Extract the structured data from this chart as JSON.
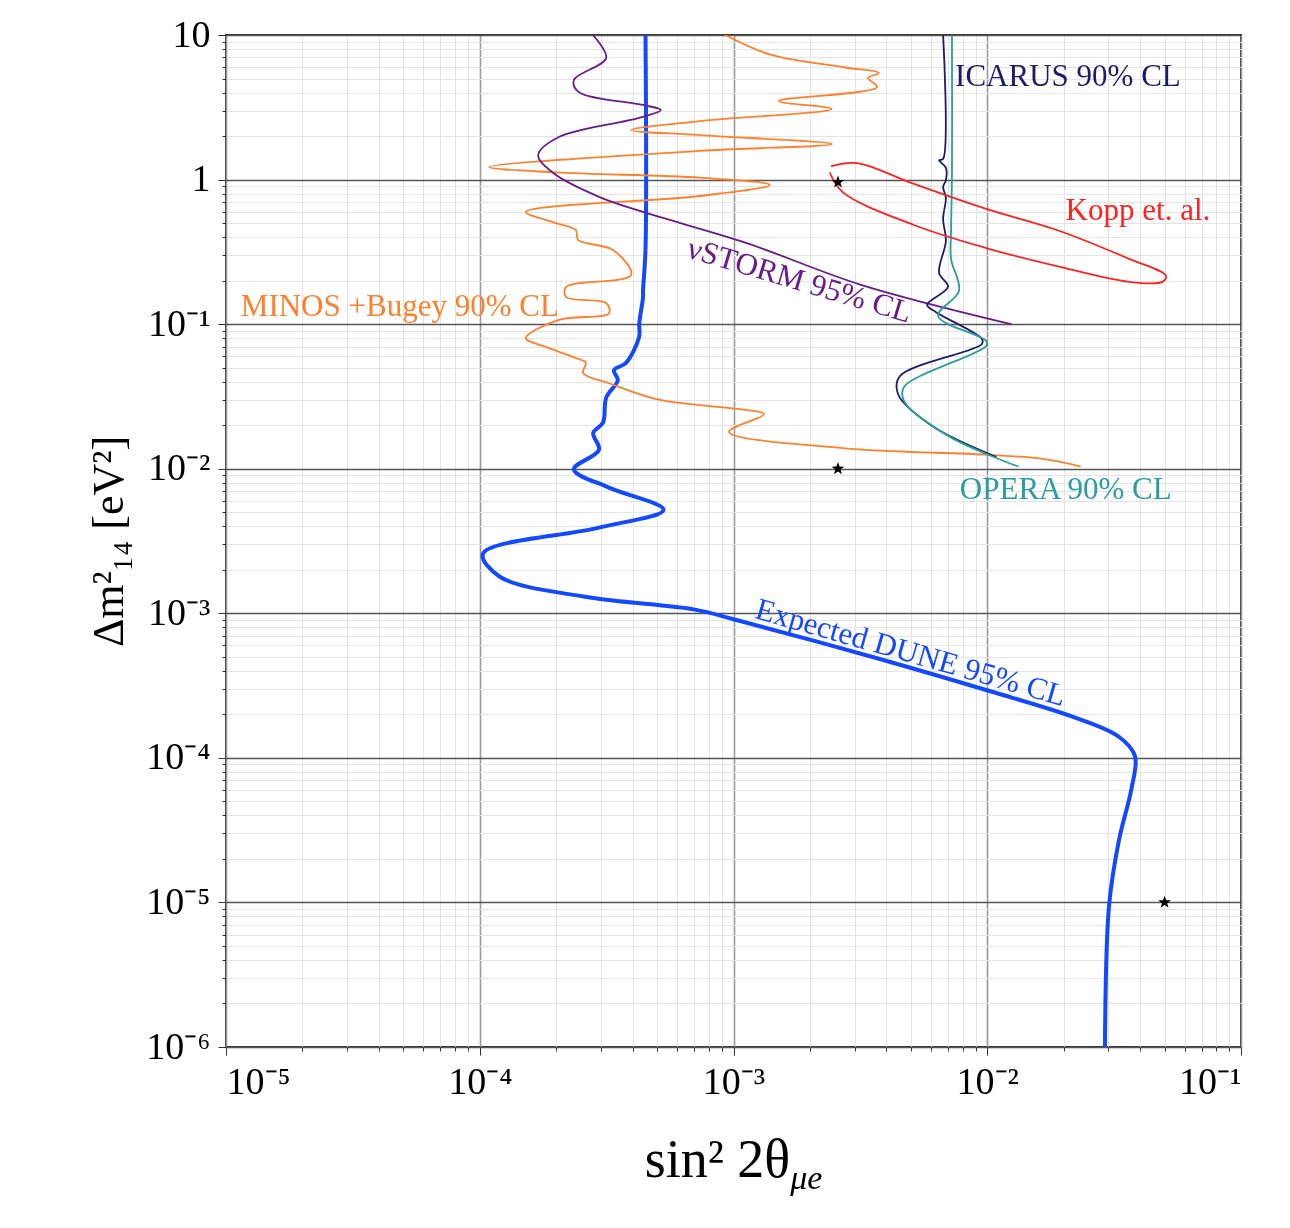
{
  "chart_data": {
    "type": "line",
    "xlabel": "sin² 2θ$_{μe}$",
    "ylabel": "Δm²₁₄ [eV²]",
    "xlim": [
      1e-05,
      0.1
    ],
    "ylim": [
      1e-06,
      10
    ],
    "log": "xy",
    "grid": true,
    "xticks": [
      {
        "value": 1e-05,
        "label": "10⁻⁵"
      },
      {
        "value": 2e-05,
        "label": null
      },
      {
        "value": 3e-05,
        "label": null
      },
      {
        "value": 4e-05,
        "label": null
      },
      {
        "value": 5e-05,
        "label": null
      },
      {
        "value": 6e-05,
        "label": null
      },
      {
        "value": 7e-05,
        "label": null
      },
      {
        "value": 8e-05,
        "label": null
      },
      {
        "value": 9e-05,
        "label": null
      },
      {
        "value": 0.0001,
        "label": "10⁻⁴"
      },
      {
        "value": 0.0002,
        "label": null
      },
      {
        "value": 0.0003,
        "label": null
      },
      {
        "value": 0.0004,
        "label": null
      },
      {
        "value": 0.0005,
        "label": null
      },
      {
        "value": 0.0006,
        "label": null
      },
      {
        "value": 0.0007,
        "label": null
      },
      {
        "value": 0.0008,
        "label": null
      },
      {
        "value": 0.0009,
        "label": null
      },
      {
        "value": 0.001,
        "label": "10⁻³"
      },
      {
        "value": 0.002,
        "label": null
      },
      {
        "value": 0.003,
        "label": null
      },
      {
        "value": 0.004,
        "label": null
      },
      {
        "value": 0.005,
        "label": null
      },
      {
        "value": 0.006,
        "label": null
      },
      {
        "value": 0.007,
        "label": null
      },
      {
        "value": 0.008,
        "label": null
      },
      {
        "value": 0.009,
        "label": null
      },
      {
        "value": 0.01,
        "label": "10⁻²"
      },
      {
        "value": 0.02,
        "label": null
      },
      {
        "value": 0.03,
        "label": null
      },
      {
        "value": 0.04,
        "label": null
      },
      {
        "value": 0.05,
        "label": null
      },
      {
        "value": 0.06,
        "label": null
      },
      {
        "value": 0.07,
        "label": null
      },
      {
        "value": 0.08,
        "label": null
      },
      {
        "value": 0.09,
        "label": null
      },
      {
        "value": 0.1,
        "label": "10⁻¹"
      }
    ],
    "yticks": [
      {
        "value": 1e-06,
        "label": "10⁻⁶"
      },
      {
        "value": 2e-06,
        "label": null
      },
      {
        "value": 3e-06,
        "label": null
      },
      {
        "value": 4e-06,
        "label": null
      },
      {
        "value": 5e-06,
        "label": null
      },
      {
        "value": 6e-06,
        "label": null
      },
      {
        "value": 7e-06,
        "label": null
      },
      {
        "value": 8e-06,
        "label": null
      },
      {
        "value": 9e-06,
        "label": null
      },
      {
        "value": 1e-05,
        "label": "10⁻⁵"
      },
      {
        "value": 2e-05,
        "label": null
      },
      {
        "value": 3e-05,
        "label": null
      },
      {
        "value": 4e-05,
        "label": null
      },
      {
        "value": 5e-05,
        "label": null
      },
      {
        "value": 6e-05,
        "label": null
      },
      {
        "value": 7e-05,
        "label": null
      },
      {
        "value": 8e-05,
        "label": null
      },
      {
        "value": 9e-05,
        "label": null
      },
      {
        "value": 0.0001,
        "label": "10⁻⁴"
      },
      {
        "value": 0.0002,
        "label": null
      },
      {
        "value": 0.0003,
        "label": null
      },
      {
        "value": 0.0004,
        "label": null
      },
      {
        "value": 0.0005,
        "label": null
      },
      {
        "value": 0.0006,
        "label": null
      },
      {
        "value": 0.0007,
        "label": null
      },
      {
        "value": 0.0008,
        "label": null
      },
      {
        "value": 0.0009,
        "label": null
      },
      {
        "value": 0.001,
        "label": "10⁻³"
      },
      {
        "value": 0.002,
        "label": null
      },
      {
        "value": 0.003,
        "label": null
      },
      {
        "value": 0.004,
        "label": null
      },
      {
        "value": 0.005,
        "label": null
      },
      {
        "value": 0.006,
        "label": null
      },
      {
        "value": 0.007,
        "label": null
      },
      {
        "value": 0.008,
        "label": null
      },
      {
        "value": 0.009,
        "label": null
      },
      {
        "value": 0.01,
        "label": "10⁻²"
      },
      {
        "value": 0.02,
        "label": null
      },
      {
        "value": 0.03,
        "label": null
      },
      {
        "value": 0.04,
        "label": null
      },
      {
        "value": 0.05,
        "label": null
      },
      {
        "value": 0.06,
        "label": null
      },
      {
        "value": 0.07,
        "label": null
      },
      {
        "value": 0.08,
        "label": null
      },
      {
        "value": 0.09,
        "label": null
      },
      {
        "value": 0.1,
        "label": "10⁻¹"
      },
      {
        "value": 0.2,
        "label": null
      },
      {
        "value": 0.3,
        "label": null
      },
      {
        "value": 0.4,
        "label": null
      },
      {
        "value": 0.5,
        "label": null
      },
      {
        "value": 0.6,
        "label": null
      },
      {
        "value": 0.7,
        "label": null
      },
      {
        "value": 0.8,
        "label": null
      },
      {
        "value": 0.9,
        "label": null
      },
      1,
      {
        "value": 2,
        "label": null
      },
      {
        "value": 3,
        "label": null
      },
      {
        "value": 4,
        "label": null
      },
      {
        "value": 5,
        "label": null
      },
      {
        "value": 6,
        "label": null
      },
      {
        "value": 7,
        "label": null
      },
      {
        "value": 8,
        "label": null
      },
      {
        "value": 9,
        "label": null
      },
      10
    ],
    "series": [
      {
        "name": "Expected DUNE 95% CL",
        "color": "#1248ff",
        "x": [
          0.00045,
          0.00045,
          0.00044,
          0.00044,
          0.000425,
          0.000425,
          0.000377,
          0.000338,
          0.00035,
          0.000315,
          0.000306,
          0.00028,
          0.000295,
          0.000235,
          0.000323,
          0.00053,
          0.000292,
          0.000103,
          0.00012,
          0.00026,
          0.000705,
          0.001,
          0.00371,
          0.0102,
          0.0218,
          0.033,
          0.0382,
          0.037,
          0.033,
          0.0302,
          0.0291
        ],
        "values": [
          10,
          0.33,
          0.17,
          0.154,
          0.1,
          0.082,
          0.054,
          0.048,
          0.041,
          0.031,
          0.0208,
          0.0177,
          0.0135,
          0.0099,
          0.0074,
          0.0052,
          0.0039,
          0.00258,
          0.00179,
          0.0013,
          0.00106,
          0.00091,
          0.000487,
          0.00029,
          0.000192,
          0.00014,
          0.000103,
          6.1e-05,
          2.67e-05,
          9.5e-06,
          1e-06
        ]
      },
      {
        "name": "MINOS +Bugey 90% CL",
        "color": "#ff7f2a",
        "x": [
          0.000927,
          0.00141,
          0.00277,
          0.00374,
          0.00339,
          0.00368,
          0.00151,
          0.00244,
          0.000738,
          0.000395,
          0.000738,
          0.00244,
          0.000738,
          0.000109,
          0.0002,
          0.000738,
          0.00139,
          0.000738,
          0.000152,
          0.0002,
          0.000239,
          0.000244,
          0.000335,
          0.000395,
          0.000219,
          0.000219,
          0.000315,
          0.000323,
          0.000205,
          0.000152,
          0.000182,
          0.000239,
          0.000262,
          0.000255,
          0.000323,
          0.000508,
          0.00112,
          0.00132,
          0.00096,
          0.0027,
          0.0099,
          0.0166,
          0.0232
        ],
        "values": [
          10,
          7.28,
          5.96,
          5.46,
          5.04,
          4.37,
          3.5,
          3.08,
          2.54,
          2.2,
          2.03,
          1.76,
          1.58,
          1.22,
          1.12,
          1.03,
          0.918,
          0.77,
          0.597,
          0.5,
          0.448,
          0.382,
          0.326,
          0.219,
          0.181,
          0.154,
          0.14,
          0.119,
          0.107,
          0.08,
          0.0696,
          0.0583,
          0.054,
          0.046,
          0.039,
          0.03,
          0.0255,
          0.0239,
          0.018,
          0.0139,
          0.0125,
          0.0117,
          0.0104
        ]
      },
      {
        "name": "νSTORM 95% CL",
        "color": "#6a1b8a",
        "x": [
          0.000279,
          0.000315,
          0.000235,
          0.000245,
          0.00044,
          0.000517,
          0.000425,
          0.000205,
          0.00017,
          0.000195,
          0.000295,
          0.00044,
          0.00112,
          0.00318,
          0.0124
        ],
        "values": [
          10,
          6.93,
          4.89,
          4.04,
          3.28,
          3.03,
          2.67,
          1.97,
          1.48,
          1.11,
          0.76,
          0.597,
          0.365,
          0.187,
          0.1
        ]
      },
      {
        "name": "ICARUS 90% CL",
        "color": "#1c1c6b",
        "x": [
          0.0067,
          0.0067,
          0.00646,
          0.00687,
          0.00687,
          0.0067,
          0.00687,
          0.0067,
          0.00687,
          0.00646,
          0.007,
          0.00579,
          0.00628,
          0.00953,
          0.00953,
          0.00453,
          0.00445,
          0.00605,
          0.0108
        ],
        "values": [
          10,
          1.39,
          1.36,
          1.21,
          0.99,
          0.89,
          0.746,
          0.535,
          0.376,
          0.226,
          0.181,
          0.136,
          0.121,
          0.079,
          0.073,
          0.0438,
          0.0329,
          0.0198,
          0.0121
        ]
      },
      {
        "name": "OPERA 90% CL",
        "color": "#2a9d9d",
        "x": [
          0.00726,
          0.00726,
          0.0072,
          0.0072,
          0.00774,
          0.0064,
          0.0099,
          0.0099,
          0.0047,
          0.0047,
          0.00713,
          0.0132
        ],
        "values": [
          10,
          1.1,
          0.448,
          0.283,
          0.17,
          0.114,
          0.0766,
          0.0707,
          0.0368,
          0.0294,
          0.0166,
          0.0104
        ]
      },
      {
        "name": "Kopp et. al.",
        "color": "#ff2020",
        "x": [
          0.00244,
          0.00307,
          0.00514,
          0.0099,
          0.0188,
          0.0362,
          0.0506,
          0.049,
          0.0362,
          0.0188,
          0.0099,
          0.00514,
          0.0027,
          0.0024
        ],
        "values": [
          1.24,
          1.3,
          0.933,
          0.627,
          0.448,
          0.283,
          0.216,
          0.196,
          0.196,
          0.252,
          0.336,
          0.485,
          0.815,
          1.11
        ]
      },
      {
        "type": "scatter",
        "marker": "star",
        "color": "#000000",
        "x": [
          0.00258,
          0.00258,
          0.05
        ],
        "values": [
          0.96,
          0.01,
          1e-05
        ]
      }
    ]
  }
}
